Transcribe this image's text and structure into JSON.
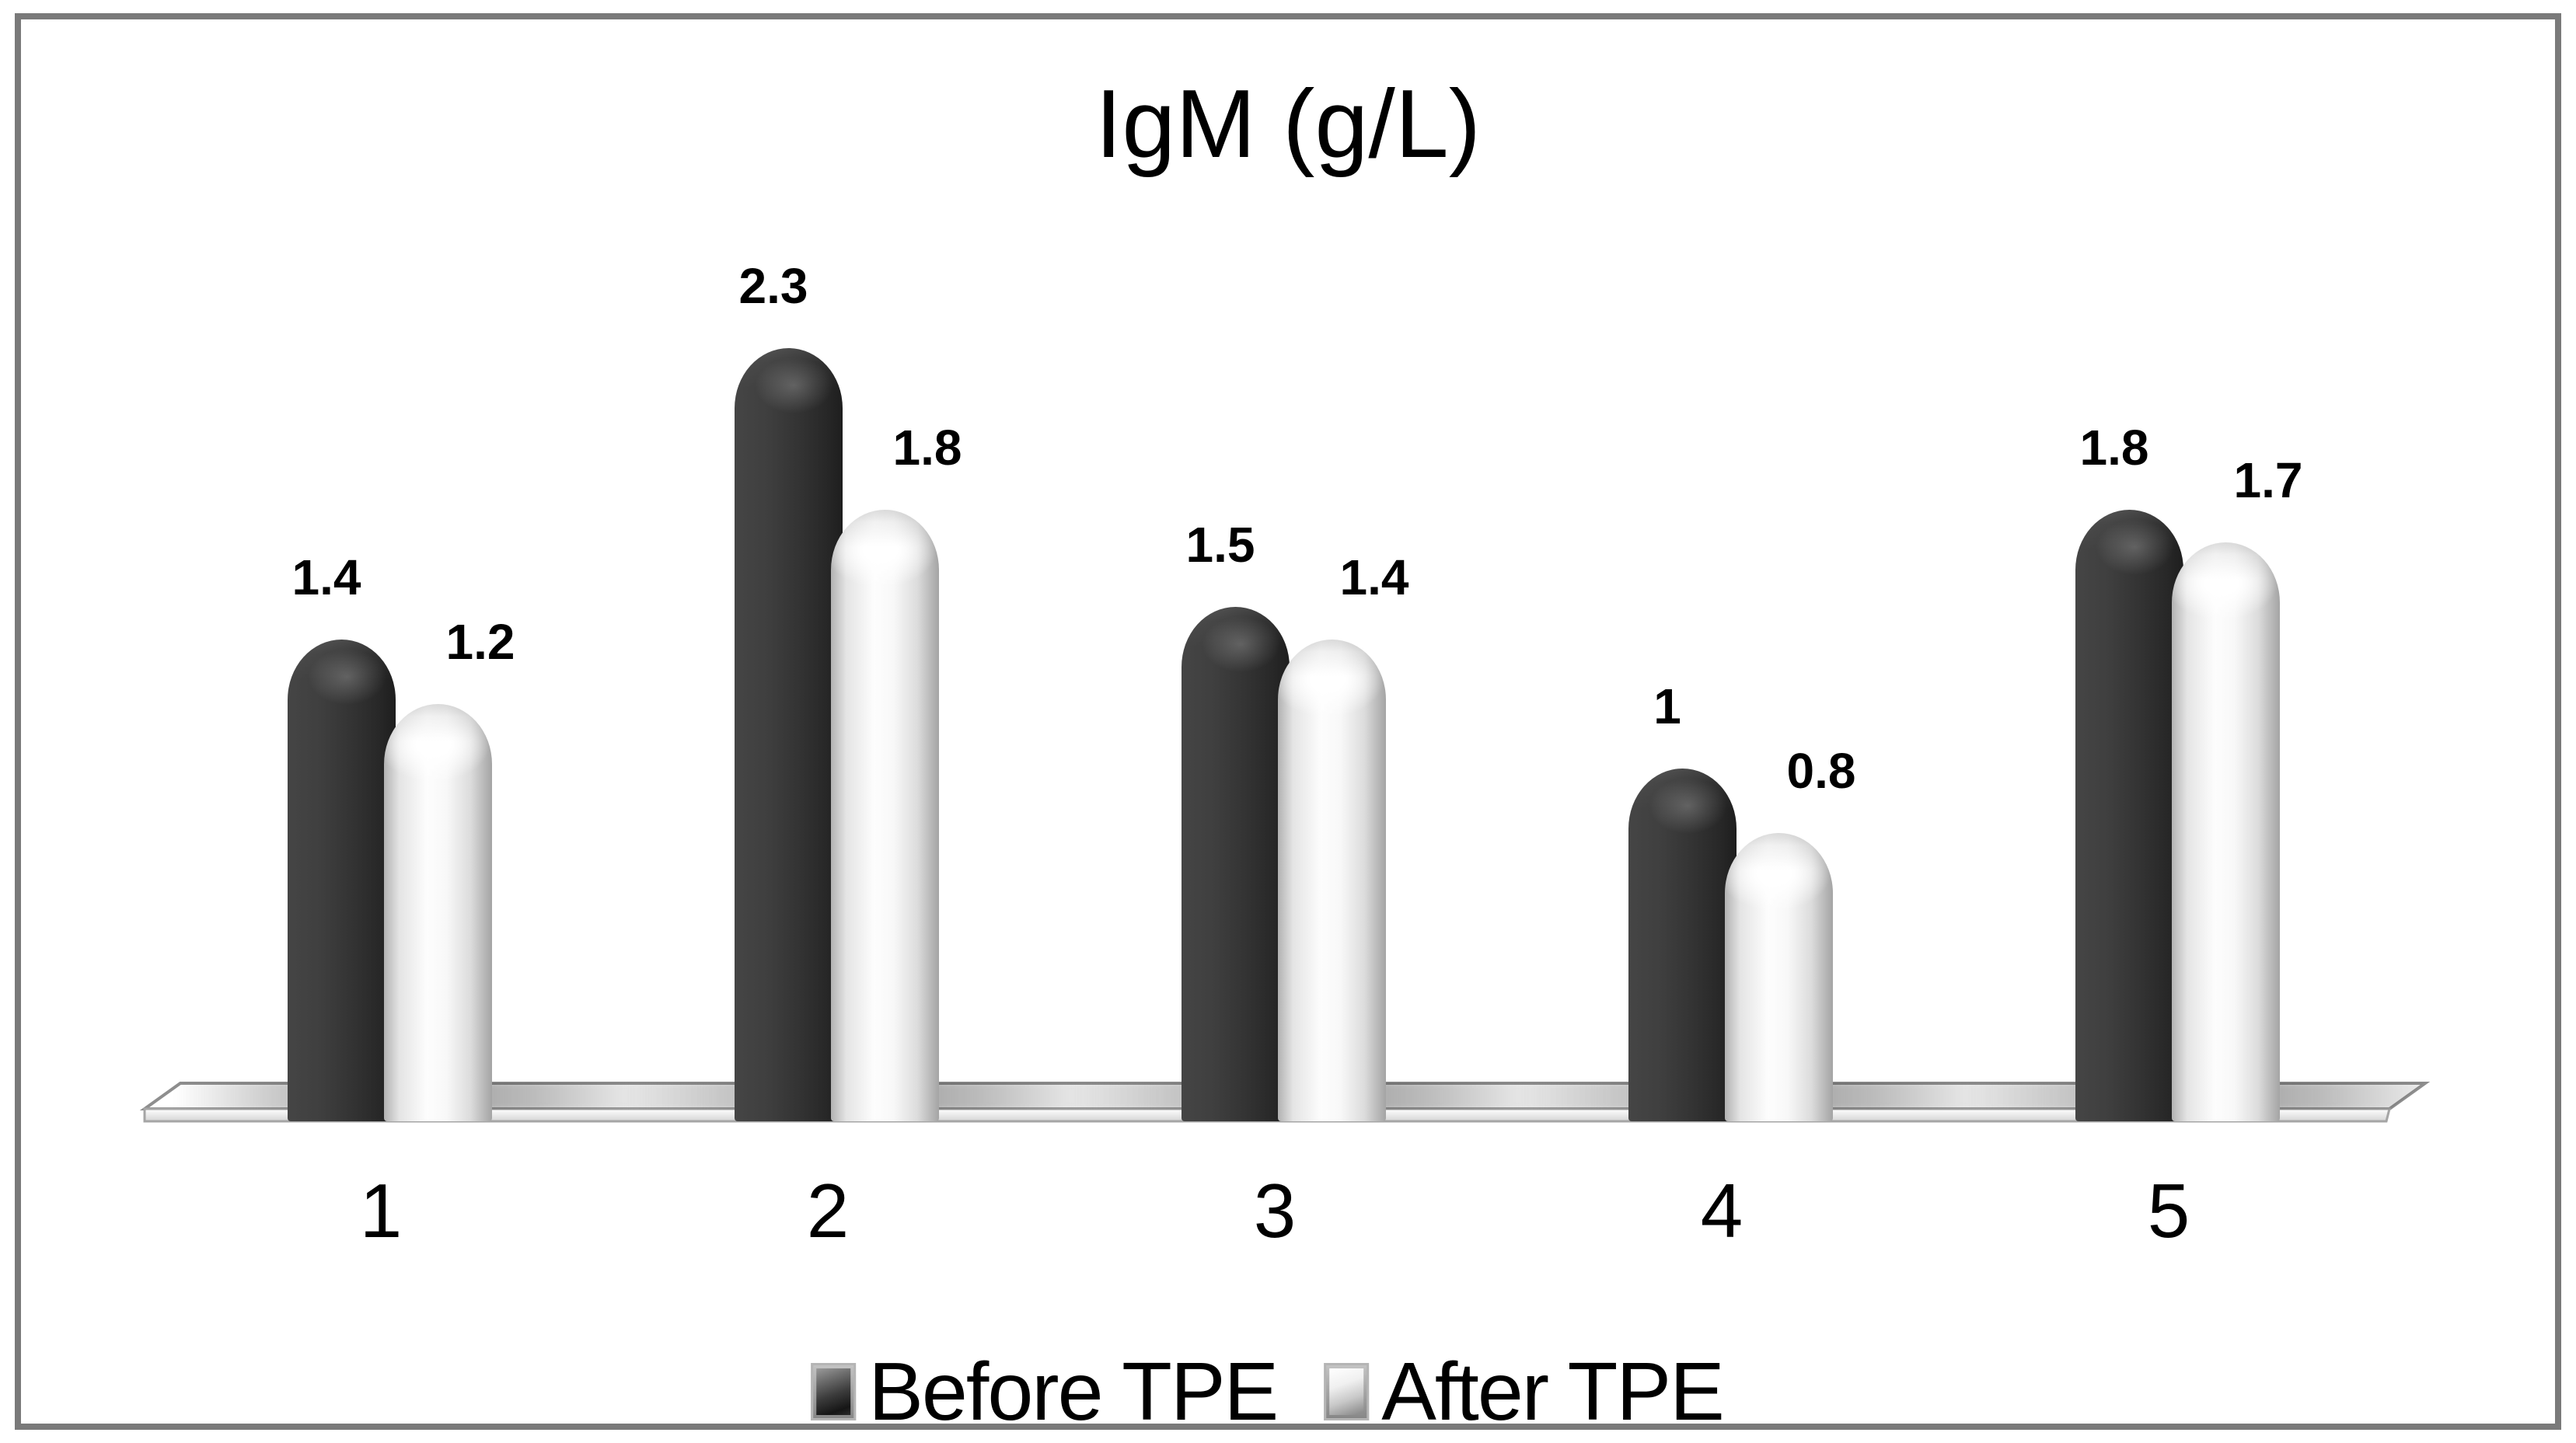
{
  "chart_data": {
    "type": "bar",
    "style": "3d-cylinder-clustered",
    "title": "IgM (g/L)",
    "categories": [
      "1",
      "2",
      "3",
      "4",
      "5"
    ],
    "series": [
      {
        "name": "Before TPE",
        "color": "#333333",
        "values": [
          1.4,
          2.3,
          1.5,
          1,
          1.8
        ]
      },
      {
        "name": "After TPE",
        "color": "#f2f2f2",
        "values": [
          1.2,
          1.8,
          1.4,
          0.8,
          1.7
        ]
      }
    ],
    "ylim": [
      0,
      2.5
    ],
    "gridlines": false,
    "data_labels": true,
    "legend_position": "bottom",
    "xlabel": "",
    "ylabel": ""
  },
  "frame": {
    "border_color": "#7a7a7a",
    "background": "#ffffff"
  },
  "floor": {
    "fill": "#ffffff",
    "edge_color": "#8e8e8e"
  }
}
